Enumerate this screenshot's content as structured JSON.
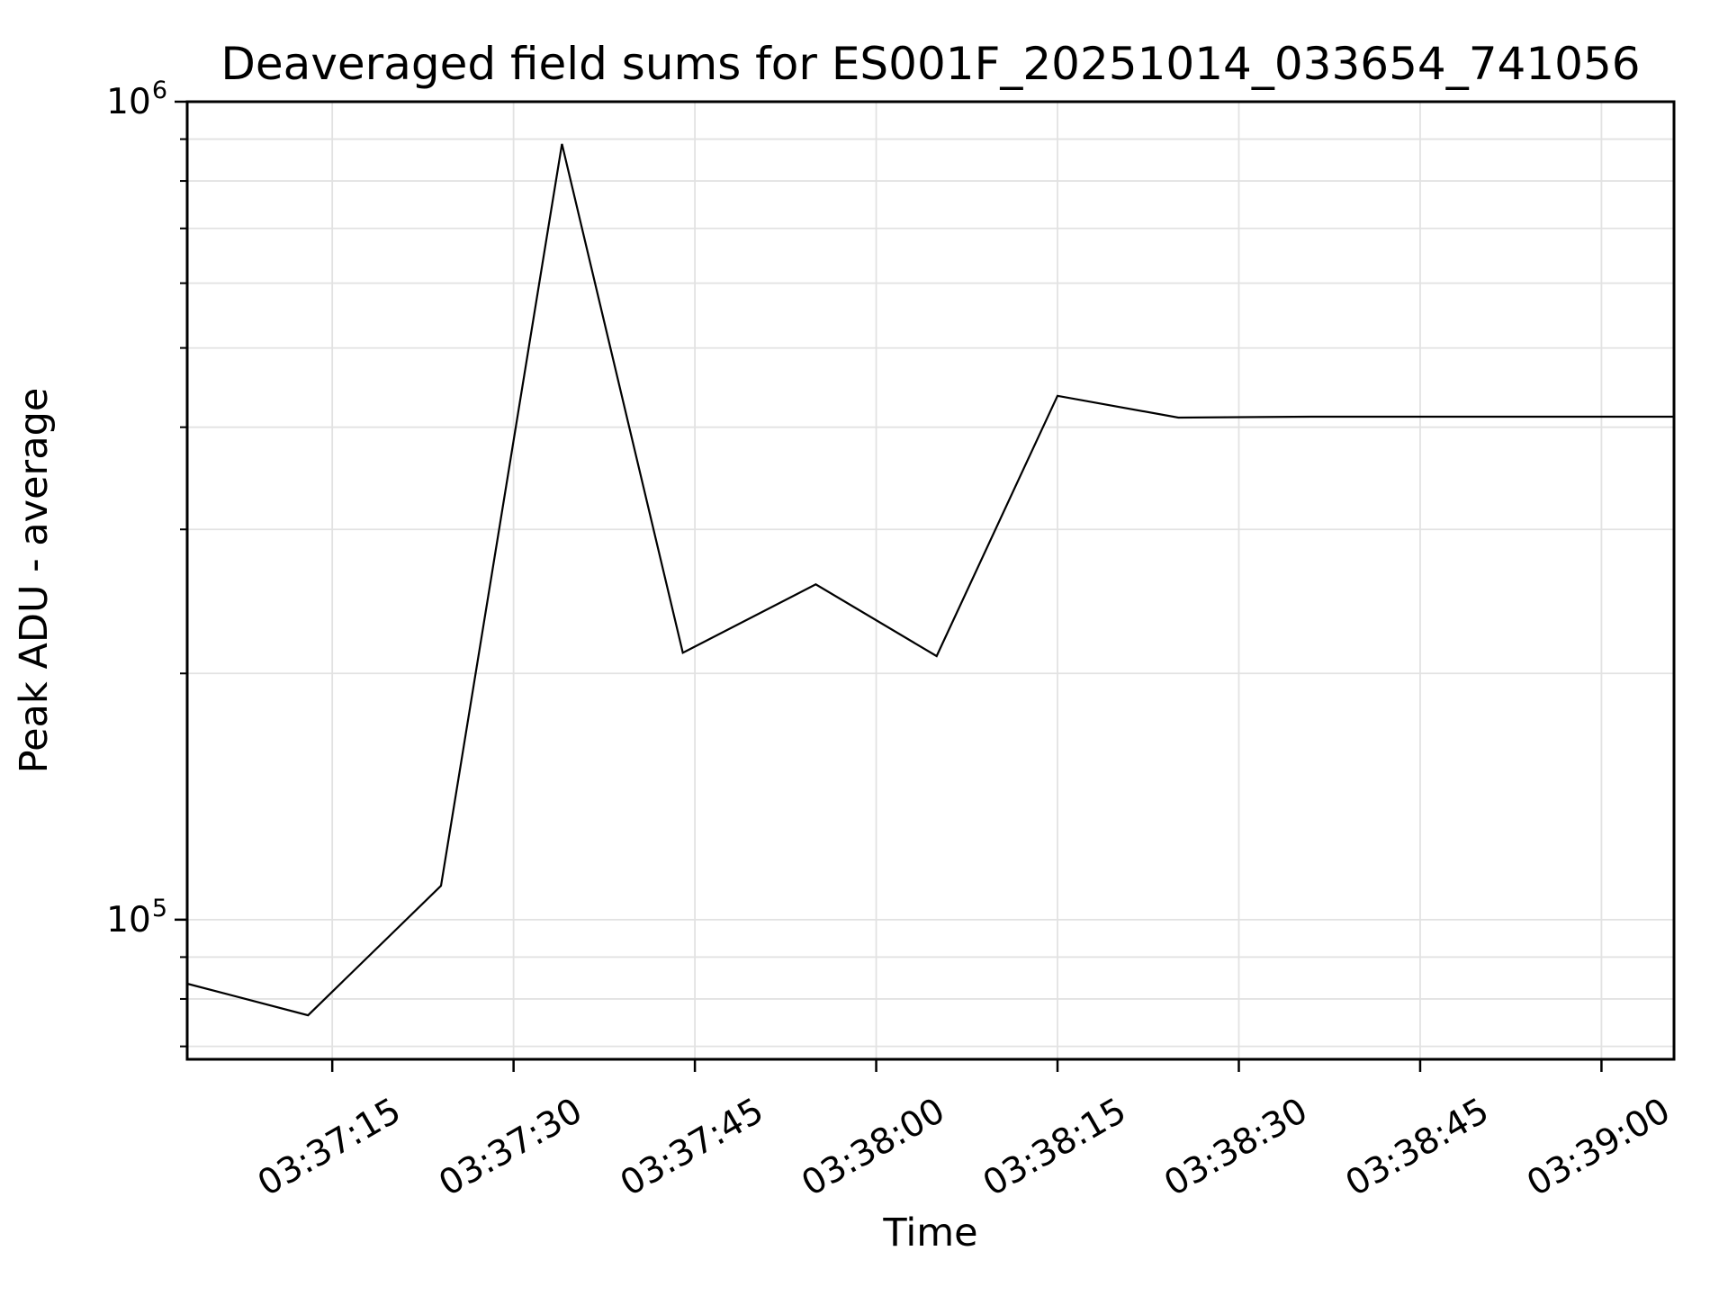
{
  "figure": {
    "background": "#ffffff"
  },
  "chart_data": {
    "type": "line",
    "title": "Deaveraged field sums for ES001F_20251014_033654_741056",
    "xlabel": "Time",
    "ylabel": "Peak ADU - average",
    "yscale": "log",
    "ylim": [
      67500,
      1000000
    ],
    "xlim": [
      "03:37:03",
      "03:39:06"
    ],
    "x_tick_labels": [
      "03:37:15",
      "03:37:30",
      "03:37:45",
      "03:38:00",
      "03:38:15",
      "03:38:30",
      "03:38:45",
      "03:39:00"
    ],
    "y_major_ticks": [
      100000,
      1000000
    ],
    "grid": "both",
    "legend_position": "none",
    "colors": {
      "line": "#000000",
      "grid": "#e2e2e2",
      "axis": "#000000",
      "text": "#000000",
      "background": "#ffffff"
    },
    "series": [
      {
        "name": "Peak ADU - average",
        "x": [
          "03:37:03",
          "03:37:13",
          "03:37:24",
          "03:37:34",
          "03:37:44",
          "03:37:55",
          "03:38:05",
          "03:38:15",
          "03:38:25",
          "03:38:36",
          "03:38:46",
          "03:38:56",
          "03:39:06"
        ],
        "y": [
          83500,
          76400,
          110000,
          888000,
          212000,
          257000,
          210000,
          437000,
          411000,
          412000,
          412000,
          412000,
          412000
        ]
      }
    ]
  }
}
